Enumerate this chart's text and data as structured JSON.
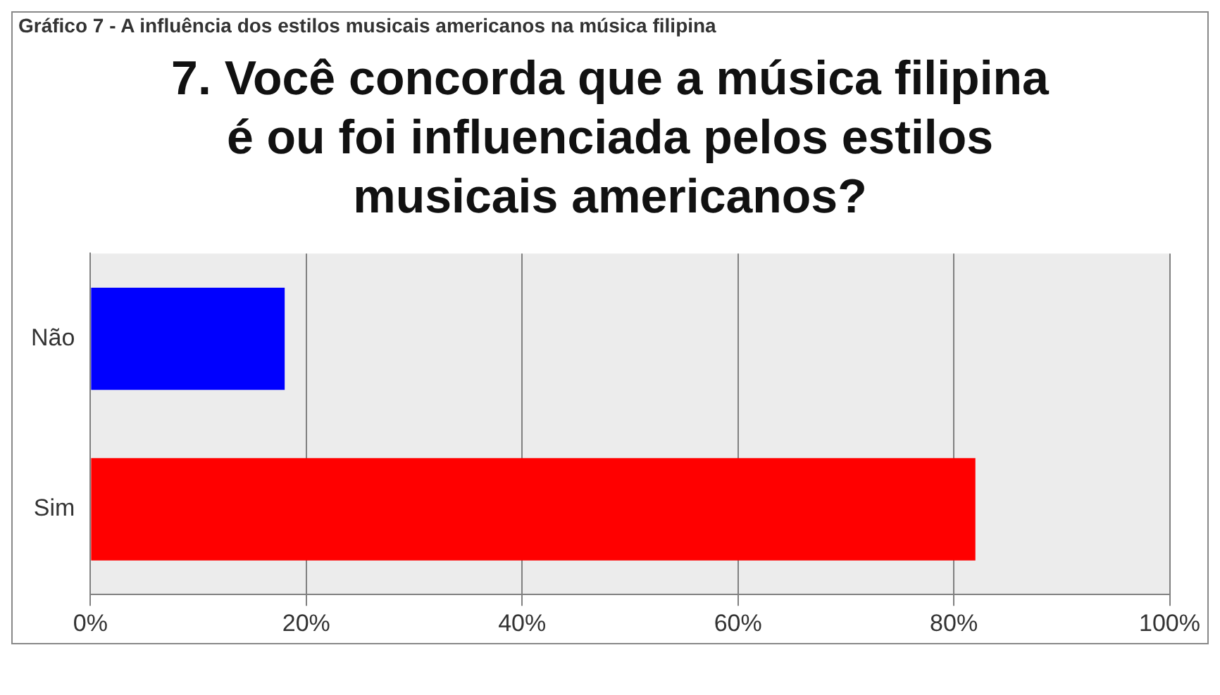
{
  "chart_data": {
    "type": "bar",
    "orientation": "horizontal",
    "title": "7. Você concorda que a música filipina é ou foi influenciada pelos estilos musicais americanos?",
    "annotations": [
      "Gráfico 7 - A influência dos estilos musicais americanos na música filipina"
    ],
    "categories": [
      "Não",
      "Sim"
    ],
    "values": [
      18,
      82
    ],
    "colors": [
      "#0000ff",
      "#ff0000"
    ],
    "xlim": [
      0,
      100
    ],
    "xticks": [
      {
        "value": 0,
        "label": "0%"
      },
      {
        "value": 20,
        "label": "20%"
      },
      {
        "value": 40,
        "label": "40%"
      },
      {
        "value": 60,
        "label": "60%"
      },
      {
        "value": 80,
        "label": "80%"
      },
      {
        "value": 100,
        "label": "100%"
      }
    ],
    "grid": "x",
    "legend": false
  }
}
